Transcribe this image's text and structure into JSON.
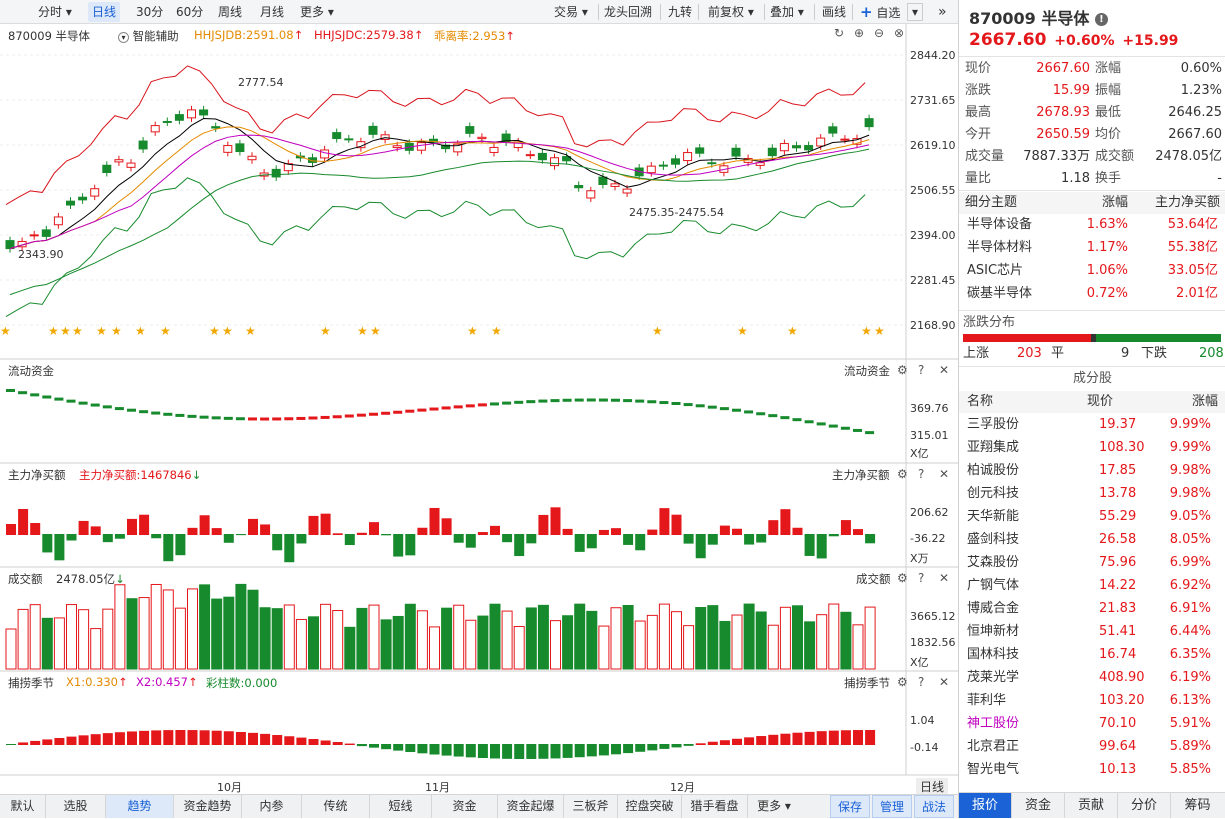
{
  "toolbar": {
    "left": [
      "分时",
      "日线",
      "30分",
      "60分",
      "周线",
      "月线",
      "更多"
    ],
    "active": "日线",
    "right": [
      "交易",
      "龙头回溯",
      "九转",
      "前复权",
      "叠加",
      "画线",
      "自选"
    ]
  },
  "chart": {
    "title": "870009 半导体",
    "assist": "智能辅助",
    "hhjsjdb": "HHJSJDB:2591.08",
    "hhjsjdc": "HHJSJDC:2579.38",
    "ratio": "乖离率:2.953",
    "high_mark": "2777.54",
    "low_mark": "2343.90",
    "range_mark": "2475.35-2475.54",
    "price_axis": [
      "2844.20",
      "2731.65",
      "2619.10",
      "2506.55",
      "2394.00",
      "2281.45",
      "2168.90"
    ],
    "months": [
      "10月",
      "11月",
      "12月"
    ],
    "period_btn": "日线"
  },
  "flow": {
    "title": "流动资金",
    "right_title": "流动资金",
    "axis": [
      "369.76",
      "315.01"
    ],
    "unit": "X亿"
  },
  "netbuy": {
    "title": "主力净买额",
    "value": "主力净买额:1467846",
    "right_title": "主力净买额",
    "axis": [
      "206.62",
      "-36.22"
    ],
    "unit": "X万"
  },
  "volume": {
    "title": "成交额",
    "value": "2478.05亿",
    "right_title": "成交额",
    "axis": [
      "3665.12",
      "1832.56"
    ],
    "unit": "X亿"
  },
  "season": {
    "title": "捕捞季节",
    "x1": "X1:0.330",
    "x2": "X2:0.457",
    "bars": "彩柱数:0.000",
    "right_title": "捕捞季节",
    "axis": [
      "1.04",
      "-0.14"
    ]
  },
  "bottom_tabs": [
    "默认",
    "选股",
    "趋势",
    "资金趋势",
    "内参",
    "传统",
    "短线",
    "资金",
    "资金起爆",
    "三板斧",
    "控盘突破",
    "猎手看盘",
    "更多"
  ],
  "bottom_active": "趋势",
  "bottom_right": [
    "保存",
    "管理",
    "战法"
  ],
  "quote": {
    "code_name": "870009 半导体",
    "price": "2667.60",
    "pct": "+0.60%",
    "chg": "+15.99",
    "fields": [
      [
        "现价",
        "2667.60",
        "涨幅",
        "0.60%"
      ],
      [
        "涨跌",
        "15.99",
        "振幅",
        "1.23%"
      ],
      [
        "最高",
        "2678.93",
        "最低",
        "2646.25"
      ],
      [
        "今开",
        "2650.59",
        "均价",
        "2667.60"
      ],
      [
        "成交量",
        "7887.33万",
        "成交额",
        "2478.05亿"
      ],
      [
        "量比",
        "1.18",
        "换手",
        "-"
      ]
    ]
  },
  "themes": {
    "headers": [
      "细分主题",
      "涨幅",
      "主力净买额"
    ],
    "rows": [
      [
        "半导体设备",
        "1.63%",
        "53.64亿"
      ],
      [
        "半导体材料",
        "1.17%",
        "55.38亿"
      ],
      [
        "ASIC芯片",
        "1.06%",
        "33.05亿"
      ],
      [
        "碳基半导体",
        "0.72%",
        "2.01亿"
      ]
    ]
  },
  "dist": {
    "title": "涨跌分布",
    "up_label": "上涨",
    "up": "203",
    "flat_label": "平",
    "flat": "9",
    "down_label": "下跌",
    "down": "208"
  },
  "components": {
    "title": "成分股",
    "headers": [
      "名称",
      "现价",
      "涨幅"
    ],
    "rows": [
      [
        "三孚股份",
        "19.37",
        "9.99%"
      ],
      [
        "亚翔集成",
        "108.30",
        "9.99%"
      ],
      [
        "柏诚股份",
        "17.85",
        "9.98%"
      ],
      [
        "创元科技",
        "13.78",
        "9.98%"
      ],
      [
        "天华新能",
        "55.29",
        "9.05%"
      ],
      [
        "盛剑科技",
        "26.58",
        "8.05%"
      ],
      [
        "艾森股份",
        "75.96",
        "6.99%"
      ],
      [
        "广钢气体",
        "14.22",
        "6.92%"
      ],
      [
        "博威合金",
        "21.83",
        "6.91%"
      ],
      [
        "恒坤新材",
        "51.41",
        "6.44%"
      ],
      [
        "国林科技",
        "16.74",
        "6.35%"
      ],
      [
        "茂莱光学",
        "408.90",
        "6.19%"
      ],
      [
        "菲利华",
        "103.20",
        "6.13%"
      ],
      [
        "神工股份",
        "70.10",
        "5.91%"
      ],
      [
        "北京君正",
        "99.64",
        "5.89%"
      ],
      [
        "智光电气",
        "10.13",
        "5.85%"
      ]
    ]
  },
  "right_tabs": [
    "报价",
    "资金",
    "贡献",
    "分价",
    "筹码"
  ],
  "right_active": "报价",
  "colors": {
    "up": "#e4171b",
    "down": "#168a2c",
    "accent": "#1a62d6"
  }
}
